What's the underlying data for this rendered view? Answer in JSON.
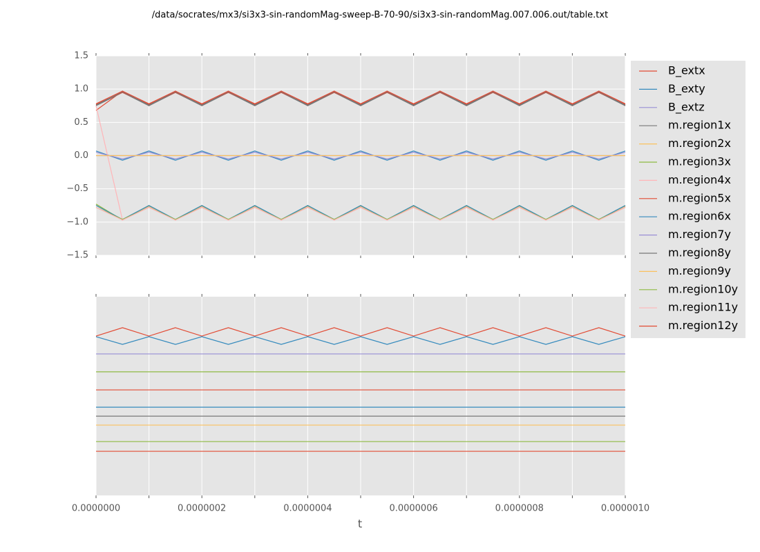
{
  "chart_data": [
    {
      "type": "line",
      "title": "/data/socrates/mx3/si3x3-sin-randomMag-sweep-B-70-90/si3x3-sin-randomMag.007.006.out/table.txt",
      "x": [
        0,
        5e-08,
        1e-07,
        1.5e-07,
        2e-07,
        2.5e-07,
        3e-07,
        3.5e-07,
        4e-07,
        4.5e-07,
        5e-07,
        5.5e-07,
        6e-07,
        6.5e-07,
        7e-07,
        7.5e-07,
        8e-07,
        8.5e-07,
        9e-07,
        9.5e-07,
        1e-06
      ],
      "xlim": [
        0,
        1e-06
      ],
      "xticks": [
        0,
        1e-07,
        2e-07,
        3e-07,
        4e-07,
        5e-07,
        6e-07,
        7e-07,
        8e-07,
        9e-07,
        1e-06
      ],
      "ylim": [
        -1.5,
        1.5
      ],
      "yticks": [
        {
          "value": -1.5,
          "label": "−1.5"
        },
        {
          "value": -1,
          "label": "−1.0"
        },
        {
          "value": -0.5,
          "label": "−0.5"
        },
        {
          "value": 0,
          "label": "0.0"
        },
        0.5,
        {
          "value": 1,
          "label": "1.0"
        },
        1.5
      ],
      "grid": true,
      "legend": "outside upper right",
      "series": [
        {
          "name": "B_extx",
          "color": "#E24A33",
          "values": [
            0.68,
            0.97,
            0.75,
            0.97,
            0.75,
            0.97,
            0.75,
            0.97,
            0.75,
            0.97,
            0.75,
            0.97,
            0.75,
            0.97,
            0.75,
            0.97,
            0.75,
            0.97,
            0.75,
            0.97,
            0.75
          ]
        },
        {
          "name": "B_exty",
          "color": "#348ABD",
          "values": [
            0.07,
            -0.07,
            0.07,
            -0.07,
            0.07,
            -0.07,
            0.07,
            -0.07,
            0.07,
            -0.07,
            0.07,
            -0.07,
            0.07,
            -0.07,
            0.07,
            -0.07,
            0.07,
            -0.07,
            0.07,
            -0.07,
            0.07
          ]
        },
        {
          "name": "B_extz",
          "color": "#988ED5",
          "values": [
            0,
            0,
            0,
            0,
            0,
            0,
            0,
            0,
            0,
            0,
            0,
            0,
            0,
            0,
            0,
            0,
            0,
            0,
            0,
            0,
            0
          ]
        },
        {
          "name": "m.region1x",
          "color": "#777777",
          "values": [
            0.75,
            0.95,
            0.75,
            0.95,
            0.75,
            0.95,
            0.75,
            0.95,
            0.75,
            0.95,
            0.75,
            0.95,
            0.75,
            0.95,
            0.75,
            0.95,
            0.75,
            0.95,
            0.75,
            0.95,
            0.75
          ]
        },
        {
          "name": "m.region2x",
          "color": "#FBC15E",
          "values": [
            -0.75,
            -0.97,
            -0.75,
            -0.97,
            -0.75,
            -0.97,
            -0.75,
            -0.97,
            -0.75,
            -0.97,
            -0.75,
            -0.97,
            -0.75,
            -0.97,
            -0.75,
            -0.97,
            -0.75,
            -0.97,
            -0.75,
            -0.97,
            -0.75
          ]
        },
        {
          "name": "m.region3x",
          "color": "#8EBA42",
          "values": [
            -0.73,
            -0.97,
            -0.76,
            -0.97,
            -0.76,
            -0.97,
            -0.76,
            -0.97,
            -0.76,
            -0.97,
            -0.76,
            -0.97,
            -0.76,
            -0.97,
            -0.76,
            -0.97,
            -0.76,
            -0.97,
            -0.76,
            -0.97,
            -0.76
          ]
        },
        {
          "name": "m.region4x",
          "color": "#FFB5B8",
          "values": [
            0.75,
            -0.97,
            -0.77,
            -0.97,
            -0.77,
            -0.97,
            -0.77,
            -0.97,
            -0.77,
            -0.97,
            -0.77,
            -0.97,
            -0.77,
            -0.97,
            -0.77,
            -0.97,
            -0.77,
            -0.97,
            -0.77,
            -0.97,
            -0.77
          ]
        },
        {
          "name": "m.region5x",
          "color": "#E24A33",
          "values": [
            0.77,
            0.95,
            0.77,
            0.95,
            0.77,
            0.95,
            0.77,
            0.95,
            0.77,
            0.95,
            0.77,
            0.95,
            0.77,
            0.95,
            0.77,
            0.95,
            0.77,
            0.95,
            0.77,
            0.95,
            0.77
          ]
        },
        {
          "name": "m.region6x",
          "color": "#348ABD",
          "values": [
            -0.75,
            -0.96,
            -0.75,
            -0.96,
            -0.75,
            -0.96,
            -0.75,
            -0.96,
            -0.75,
            -0.96,
            -0.75,
            -0.96,
            -0.75,
            -0.96,
            -0.75,
            -0.96,
            -0.75,
            -0.96,
            -0.75,
            -0.96,
            -0.75
          ]
        },
        {
          "name": "m.region7y",
          "color": "#988ED5",
          "values": [
            0.05,
            -0.05,
            0.05,
            -0.05,
            0.05,
            -0.05,
            0.05,
            -0.05,
            0.05,
            -0.05,
            0.05,
            -0.05,
            0.05,
            -0.05,
            0.05,
            -0.05,
            0.05,
            -0.05,
            0.05,
            -0.05,
            0.05
          ]
        },
        {
          "name": "m.region8y",
          "color": "#777777",
          "values": [
            0.76,
            0.96,
            0.76,
            0.96,
            0.76,
            0.96,
            0.76,
            0.96,
            0.76,
            0.96,
            0.76,
            0.96,
            0.76,
            0.96,
            0.76,
            0.96,
            0.76,
            0.96,
            0.76,
            0.96,
            0.76
          ]
        },
        {
          "name": "m.region9y",
          "color": "#FBC15E",
          "values": [
            0,
            0,
            0,
            0,
            0,
            0,
            0,
            0,
            0,
            0,
            0,
            0,
            0,
            0,
            0,
            0,
            0,
            0,
            0,
            0,
            0
          ]
        },
        {
          "name": "m.region10y",
          "color": "#8EBA42",
          "values": [
            -0.78,
            -0.96,
            -0.78,
            -0.96,
            -0.78,
            -0.96,
            -0.78,
            -0.96,
            -0.78,
            -0.96,
            -0.78,
            -0.96,
            -0.78,
            -0.96,
            -0.78,
            -0.96,
            -0.78,
            -0.96,
            -0.78,
            -0.96,
            -0.78
          ]
        },
        {
          "name": "m.region11y",
          "color": "#FFB5B8",
          "values": [
            -0.78,
            -0.97,
            -0.78,
            -0.97,
            -0.78,
            -0.97,
            -0.78,
            -0.97,
            -0.78,
            -0.97,
            -0.78,
            -0.97,
            -0.78,
            -0.97,
            -0.78,
            -0.97,
            -0.78,
            -0.97,
            -0.78,
            -0.97,
            -0.78
          ]
        },
        {
          "name": "m.region12y",
          "color": "#E24A33",
          "values": [
            0.78,
            0.97,
            0.78,
            0.97,
            0.78,
            0.97,
            0.78,
            0.97,
            0.78,
            0.97,
            0.78,
            0.97,
            0.78,
            0.97,
            0.78,
            0.97,
            0.78,
            0.97,
            0.78,
            0.97,
            0.78
          ]
        }
      ]
    },
    {
      "type": "line",
      "x_label": "t",
      "x": [
        0,
        5e-08,
        1e-07,
        1.5e-07,
        2e-07,
        2.5e-07,
        3e-07,
        3.5e-07,
        4e-07,
        4.5e-07,
        5e-07,
        5.5e-07,
        6e-07,
        6.5e-07,
        7e-07,
        7.5e-07,
        8e-07,
        8.5e-07,
        9e-07,
        9.5e-07,
        1e-06
      ],
      "xlim": [
        0,
        1e-06
      ],
      "xticks": [
        {
          "value": 0,
          "label": "0.0000000"
        },
        1e-07,
        {
          "value": 2e-07,
          "label": "0.0000002"
        },
        3e-07,
        {
          "value": 4e-07,
          "label": "0.0000004"
        },
        5e-07,
        {
          "value": 6e-07,
          "label": "0.0000006"
        },
        7e-07,
        {
          "value": 8e-07,
          "label": "0.0000008"
        },
        9e-07,
        {
          "value": 1e-06,
          "label": "0.0000010"
        }
      ],
      "ylim": [
        0,
        10
      ],
      "grid": true,
      "series": [
        {
          "color": "#E24A33",
          "values": [
            8.02,
            8.44,
            8.02,
            8.44,
            8.02,
            8.44,
            8.02,
            8.44,
            8.02,
            8.44,
            8.02,
            8.44,
            8.02,
            8.44,
            8.02,
            8.44,
            8.02,
            8.44,
            8.02,
            8.44,
            8.02
          ]
        },
        {
          "color": "#348ABD",
          "values": [
            7.99,
            7.6,
            7.99,
            7.6,
            7.99,
            7.6,
            7.99,
            7.6,
            7.99,
            7.6,
            7.99,
            7.6,
            7.99,
            7.6,
            7.99,
            7.6,
            7.99,
            7.6,
            7.99,
            7.6,
            7.99
          ]
        },
        {
          "color": "#988ED5",
          "values": [
            7.12,
            7.12,
            7.12,
            7.12,
            7.12,
            7.12,
            7.12,
            7.12,
            7.12,
            7.12,
            7.12,
            7.12,
            7.12,
            7.12,
            7.12,
            7.12,
            7.12,
            7.12,
            7.12,
            7.12,
            7.12
          ]
        },
        {
          "color": "#8EBA42",
          "values": [
            6.22,
            6.22,
            6.22,
            6.22,
            6.22,
            6.22,
            6.22,
            6.22,
            6.22,
            6.22,
            6.22,
            6.22,
            6.22,
            6.22,
            6.22,
            6.22,
            6.22,
            6.22,
            6.22,
            6.22,
            6.22
          ]
        },
        {
          "color": "#E24A33",
          "values": [
            5.31,
            5.31,
            5.31,
            5.31,
            5.31,
            5.31,
            5.31,
            5.31,
            5.31,
            5.31,
            5.31,
            5.31,
            5.31,
            5.31,
            5.31,
            5.31,
            5.31,
            5.31,
            5.31,
            5.31,
            5.31
          ]
        },
        {
          "color": "#348ABD",
          "values": [
            4.44,
            4.44,
            4.44,
            4.44,
            4.44,
            4.44,
            4.44,
            4.44,
            4.44,
            4.44,
            4.44,
            4.44,
            4.44,
            4.44,
            4.44,
            4.44,
            4.44,
            4.44,
            4.44,
            4.44,
            4.44
          ]
        },
        {
          "color": "#777777",
          "values": [
            3.99,
            3.99,
            3.99,
            3.99,
            3.99,
            3.99,
            3.99,
            3.99,
            3.99,
            3.99,
            3.99,
            3.99,
            3.99,
            3.99,
            3.99,
            3.99,
            3.99,
            3.99,
            3.99,
            3.99,
            3.99
          ]
        },
        {
          "color": "#FBC15E",
          "values": [
            3.54,
            3.54,
            3.54,
            3.54,
            3.54,
            3.54,
            3.54,
            3.54,
            3.54,
            3.54,
            3.54,
            3.54,
            3.54,
            3.54,
            3.54,
            3.54,
            3.54,
            3.54,
            3.54,
            3.54,
            3.54
          ]
        },
        {
          "color": "#8EBA42",
          "values": [
            2.71,
            2.71,
            2.71,
            2.71,
            2.71,
            2.71,
            2.71,
            2.71,
            2.71,
            2.71,
            2.71,
            2.71,
            2.71,
            2.71,
            2.71,
            2.71,
            2.71,
            2.71,
            2.71,
            2.71,
            2.71
          ]
        },
        {
          "color": "#E24A33",
          "values": [
            2.22,
            2.22,
            2.22,
            2.22,
            2.22,
            2.22,
            2.22,
            2.22,
            2.22,
            2.22,
            2.22,
            2.22,
            2.22,
            2.22,
            2.22,
            2.22,
            2.22,
            2.22,
            2.22,
            2.22,
            2.22
          ]
        }
      ]
    }
  ]
}
